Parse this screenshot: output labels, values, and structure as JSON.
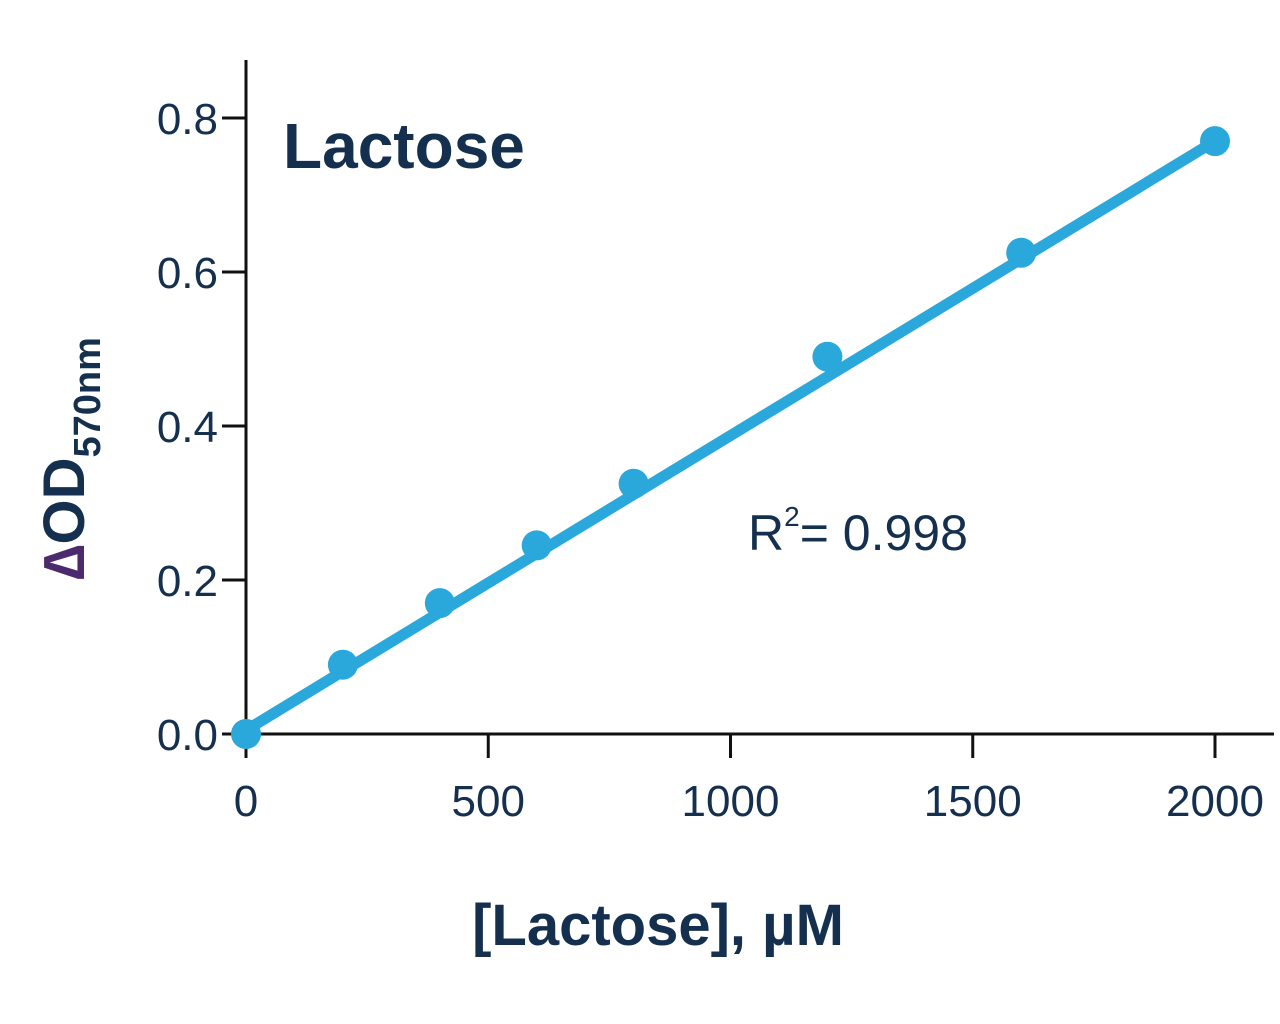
{
  "chart_data": {
    "type": "scatter",
    "title": "Lactose",
    "xlabel": "[Lactose], µM",
    "ylabel": {
      "delta": "∆",
      "main": "OD",
      "subscript": "570nm"
    },
    "xlim": [
      0,
      2100
    ],
    "ylim": [
      0,
      0.8
    ],
    "xticks": [
      0,
      500,
      1000,
      1500,
      2000
    ],
    "xtick_labels": [
      "0",
      "500",
      "1000",
      "1500",
      "2000"
    ],
    "yticks": [
      0,
      0.2,
      0.4,
      0.6,
      0.8
    ],
    "ytick_labels": [
      "0.0",
      "0.2",
      "0.4",
      "0.6",
      "0.8"
    ],
    "grid": false,
    "series": [
      {
        "x": [
          0,
          200,
          400,
          600,
          800,
          1200,
          1600,
          2000
        ],
        "y": [
          0.0,
          0.09,
          0.17,
          0.245,
          0.325,
          0.49,
          0.625,
          0.77
        ]
      }
    ],
    "fit_line": {
      "x": [
        0,
        2000
      ],
      "y": [
        0.005,
        0.77
      ]
    },
    "annotation": {
      "main": "R",
      "sup": "2",
      "rest": "= 0.998"
    },
    "colors": {
      "series": "#2aa8dc",
      "text": "#15304f",
      "axis": "#111111",
      "delta": "#4b2a6e"
    }
  }
}
